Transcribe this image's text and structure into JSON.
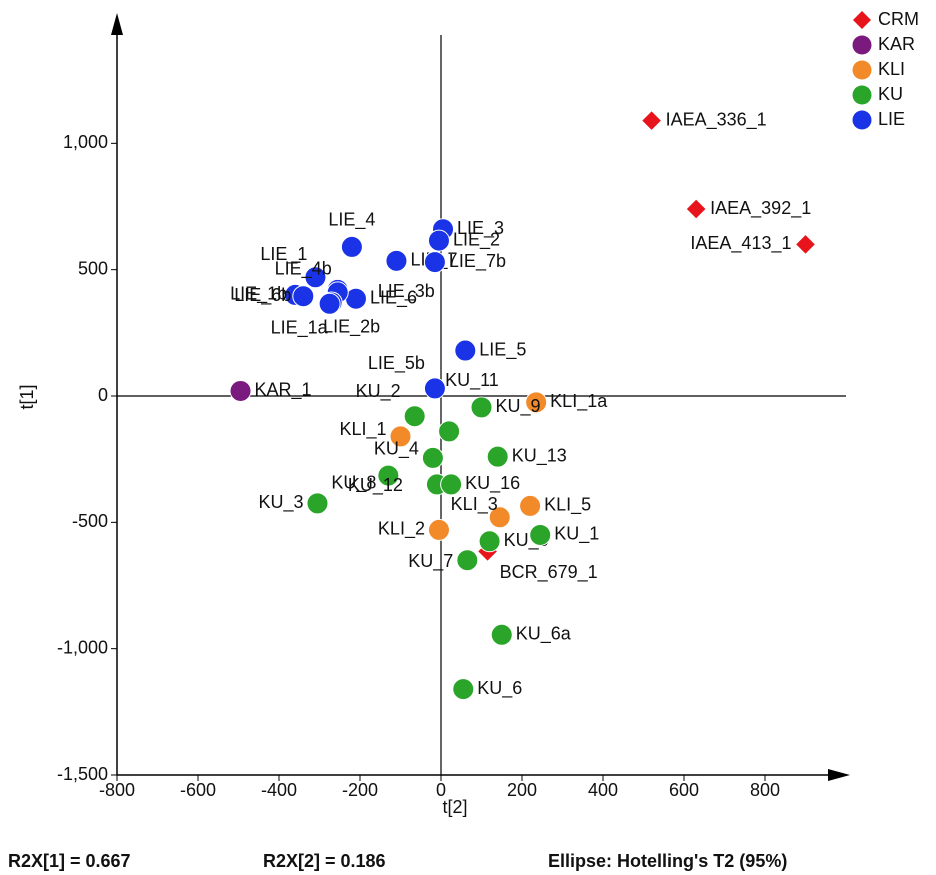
{
  "chart_data": {
    "type": "scatter",
    "x_label": "t[2]",
    "y_label": "t[1]",
    "xlim": [
      -800,
      1000
    ],
    "ylim": [
      -1500,
      1500
    ],
    "xticks": [
      -800,
      -600,
      -400,
      -200,
      0,
      200,
      400,
      600,
      800
    ],
    "yticks": [
      {
        "value": -1500,
        "label": "-1,500"
      },
      {
        "value": -1000,
        "label": "-1,000"
      },
      -500,
      0,
      500,
      {
        "value": 1000,
        "label": "1,000"
      }
    ],
    "legend": "top-right",
    "annotations": [
      "R2X[1] = 0.667",
      "R2X[2] = 0.186",
      "Ellipse: Hotelling's T2 (95%)"
    ],
    "series": [
      {
        "name": "CRM",
        "color": "#e8141b",
        "marker": "diamond",
        "x": [
          520,
          630,
          900,
          115
        ],
        "values": [
          1090,
          740,
          600,
          -615
        ],
        "labels": [
          "IAEA_336_1",
          "IAEA_392_1",
          "IAEA_413_1",
          "BCR_679_1"
        ]
      },
      {
        "name": "KAR",
        "color": "#7b1a7e",
        "marker": "circle",
        "x": [
          -495
        ],
        "values": [
          20
        ],
        "labels": [
          "KAR_1"
        ]
      },
      {
        "name": "KLI",
        "color": "#f28a2a",
        "marker": "circle",
        "x": [
          235,
          -100,
          220,
          145,
          -5
        ],
        "values": [
          -25,
          -160,
          -435,
          -480,
          -530
        ],
        "labels": [
          "KLI_1a",
          "KLI_1",
          "KLI_5",
          "KLI_3",
          "KLI_2"
        ]
      },
      {
        "name": "KU",
        "color": "#2aa52a",
        "marker": "circle",
        "x": [
          -65,
          20,
          100,
          140,
          -20,
          -130,
          -10,
          25,
          -305,
          120,
          245,
          65,
          150,
          55
        ],
        "values": [
          -80,
          -140,
          -45,
          -240,
          -245,
          -315,
          -350,
          -350,
          -425,
          -575,
          -550,
          -650,
          -945,
          -1160
        ],
        "labels": [
          "KU_2",
          "KU_11",
          "KU_9",
          "KU_13",
          "KU_4",
          "KU_8",
          "KU_12",
          "KU_16",
          "KU_3",
          "KU_5",
          "KU_1",
          "KU_7",
          "KU_6a",
          "KU_6"
        ]
      },
      {
        "name": "LIE",
        "color": "#1a33e6",
        "marker": "circle",
        "x": [
          5,
          -5,
          -220,
          -110,
          -15,
          -310,
          -255,
          -210,
          -255,
          -360,
          -340,
          -270,
          -275,
          60,
          -15
        ],
        "values": [
          660,
          615,
          590,
          535,
          530,
          470,
          420,
          385,
          410,
          400,
          395,
          370,
          365,
          180,
          30
        ],
        "labels": [
          "LIE_3",
          "LIE_2",
          "LIE_4",
          "LIE_7",
          "LIE_7b",
          "LIE_1",
          "LIE_4b",
          "LIE_6",
          "LIE_3b",
          "LIE_1b",
          "LIE_6b",
          "LIE_1a",
          "LIE_2b",
          "LIE_5",
          "LIE_5b"
        ]
      }
    ]
  }
}
